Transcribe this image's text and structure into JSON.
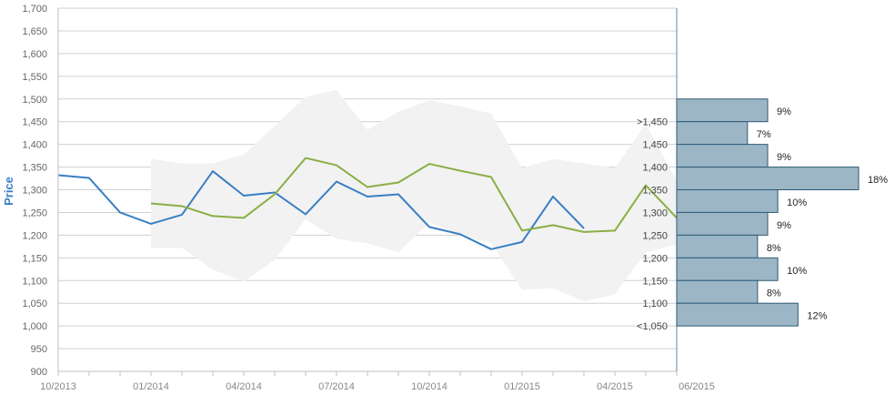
{
  "chart_data": {
    "type": "line",
    "title": "",
    "xlabel": "",
    "ylabel": "Price",
    "ylim": [
      900,
      1700
    ],
    "yticks": [
      "900",
      "950",
      "1,000",
      "1,050",
      "1,100",
      "1,150",
      "1,200",
      "1,250",
      "1,300",
      "1,350",
      "1,400",
      "1,450",
      "1,500",
      "1,550",
      "1,600",
      "1,650",
      "1,700"
    ],
    "xticks": [
      "10/2013",
      "01/2014",
      "04/2014",
      "07/2014",
      "10/2014",
      "01/2015",
      "04/2015",
      "06/2015"
    ],
    "x": [
      "10/2013",
      "11/2013",
      "12/2013",
      "01/2014",
      "02/2014",
      "03/2014",
      "04/2014",
      "05/2014",
      "06/2014",
      "07/2014",
      "08/2014",
      "09/2014",
      "10/2014",
      "11/2014",
      "12/2014",
      "01/2015",
      "02/2015",
      "03/2015",
      "04/2015",
      "05/2015",
      "06/2015"
    ],
    "series": [
      {
        "name": "",
        "color": "#3a7fc4",
        "values": [
          1332,
          1326,
          1250,
          1225,
          1245,
          1341,
          1287,
          1294,
          1246,
          1318,
          1285,
          1290,
          1218,
          1202,
          1169,
          1185,
          1285,
          1215,
          null,
          null,
          null
        ]
      },
      {
        "name": "",
        "color": "#8aae45",
        "values": [
          null,
          null,
          null,
          1270,
          1264,
          1242,
          1238,
          1290,
          1370,
          1354,
          1306,
          1316,
          1357,
          1342,
          1328,
          1210,
          1222,
          1207,
          1210,
          1310,
          1238
        ]
      }
    ],
    "band": {
      "color": "#f2f2f2",
      "upper": [
        null,
        null,
        null,
        1368,
        1358,
        1358,
        1378,
        1440,
        1505,
        1520,
        1432,
        1472,
        1497,
        1484,
        1468,
        1348,
        1368,
        1358,
        1348,
        1445,
        1320
      ],
      "lower": [
        null,
        null,
        null,
        1172,
        1172,
        1124,
        1098,
        1145,
        1235,
        1192,
        1182,
        1162,
        1228,
        1200,
        1182,
        1080,
        1083,
        1054,
        1070,
        1162,
        1180
      ]
    },
    "histogram": {
      "type": "bar",
      "color": "#9cb6c6",
      "bins": [
        {
          "label": ">1,450",
          "percent": 9
        },
        {
          "label": "1,450",
          "percent": 7
        },
        {
          "label": "1,400",
          "percent": 9
        },
        {
          "label": "1,350",
          "percent": 18
        },
        {
          "label": "1,300",
          "percent": 10
        },
        {
          "label": "1,250",
          "percent": 9
        },
        {
          "label": "1,200",
          "percent": 8
        },
        {
          "label": "1,150",
          "percent": 10
        },
        {
          "label": "1,100",
          "percent": 8
        },
        {
          "label": "<1,050",
          "percent": 12
        }
      ],
      "percent_labels": [
        "9%",
        "7%",
        "9%",
        "18%",
        "10%",
        "9%",
        "8%",
        "10%",
        "8%",
        "12%"
      ]
    },
    "grid": true,
    "legend": "none"
  }
}
